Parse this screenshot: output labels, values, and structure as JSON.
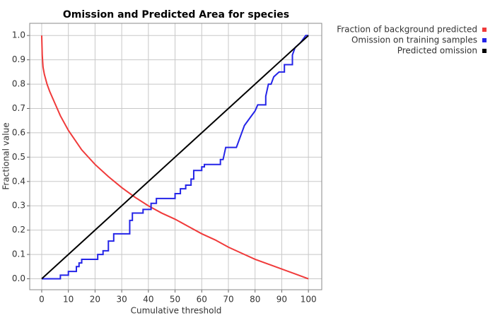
{
  "chart_data": {
    "type": "line",
    "title": "Omission and Predicted Area for species",
    "x_label": "Cumulative threshold",
    "y_label": "Fractional value",
    "xlim": [
      -4.5,
      105
    ],
    "ylim": [
      -0.045,
      1.05
    ],
    "xticks": [
      0,
      10,
      20,
      30,
      40,
      50,
      60,
      70,
      80,
      90,
      100
    ],
    "yticks": [
      {
        "value": 0,
        "label": "0.0"
      },
      {
        "value": 0.1,
        "label": "0.1"
      },
      {
        "value": 0.2,
        "label": "0.2"
      },
      {
        "value": 0.3,
        "label": "0.3"
      },
      {
        "value": 0.4,
        "label": "0.4"
      },
      {
        "value": 0.5,
        "label": "0.5"
      },
      {
        "value": 0.6,
        "label": "0.6"
      },
      {
        "value": 0.7,
        "label": "0.7"
      },
      {
        "value": 0.8,
        "label": "0.8"
      },
      {
        "value": 0.9,
        "label": "0.9"
      },
      {
        "value": 1,
        "label": "1.0"
      }
    ],
    "grid": true,
    "legend": "upper-right-outside",
    "series": [
      {
        "name": "Fraction of background predicted",
        "color": "#f03a3a",
        "x": [
          0,
          0.2,
          0.5,
          1,
          2,
          3,
          5,
          7,
          10,
          15,
          20,
          25,
          30,
          35,
          40,
          45,
          50,
          55,
          60,
          65,
          70,
          75,
          80,
          85,
          90,
          95,
          100
        ],
        "values": [
          1.0,
          0.92,
          0.87,
          0.84,
          0.8,
          0.77,
          0.72,
          0.67,
          0.61,
          0.53,
          0.47,
          0.42,
          0.375,
          0.335,
          0.3,
          0.27,
          0.245,
          0.215,
          0.185,
          0.16,
          0.13,
          0.105,
          0.08,
          0.06,
          0.04,
          0.02,
          0.0
        ]
      },
      {
        "name": "Omission on training samples",
        "color": "#2424e8",
        "x": [
          0,
          7,
          7,
          10,
          10,
          13,
          13,
          14,
          14,
          15,
          15,
          21,
          21,
          23,
          23,
          25,
          25,
          27,
          27,
          33,
          33,
          34,
          34,
          38,
          38,
          41,
          41,
          43,
          43,
          50,
          50,
          52,
          52,
          54,
          54,
          56,
          56,
          57,
          57,
          60,
          60,
          61,
          61,
          67,
          67,
          68,
          69,
          73,
          75,
          76,
          78,
          80,
          81,
          84,
          84,
          85,
          86,
          87,
          89,
          91,
          91,
          94,
          94,
          95,
          97,
          99,
          100
        ],
        "values": [
          0,
          0,
          0.015,
          0.015,
          0.03,
          0.03,
          0.05,
          0.05,
          0.065,
          0.065,
          0.08,
          0.08,
          0.1,
          0.1,
          0.115,
          0.115,
          0.155,
          0.155,
          0.185,
          0.185,
          0.24,
          0.24,
          0.27,
          0.27,
          0.285,
          0.285,
          0.31,
          0.31,
          0.33,
          0.33,
          0.35,
          0.35,
          0.37,
          0.37,
          0.385,
          0.385,
          0.41,
          0.41,
          0.445,
          0.445,
          0.46,
          0.46,
          0.47,
          0.47,
          0.49,
          0.49,
          0.54,
          0.54,
          0.6,
          0.63,
          0.66,
          0.69,
          0.715,
          0.715,
          0.75,
          0.8,
          0.8,
          0.83,
          0.85,
          0.85,
          0.88,
          0.88,
          0.92,
          0.95,
          0.97,
          1.0,
          1.0
        ]
      },
      {
        "name": "Predicted omission",
        "color": "#000000",
        "x": [
          0,
          100
        ],
        "values": [
          0,
          1
        ]
      }
    ]
  }
}
